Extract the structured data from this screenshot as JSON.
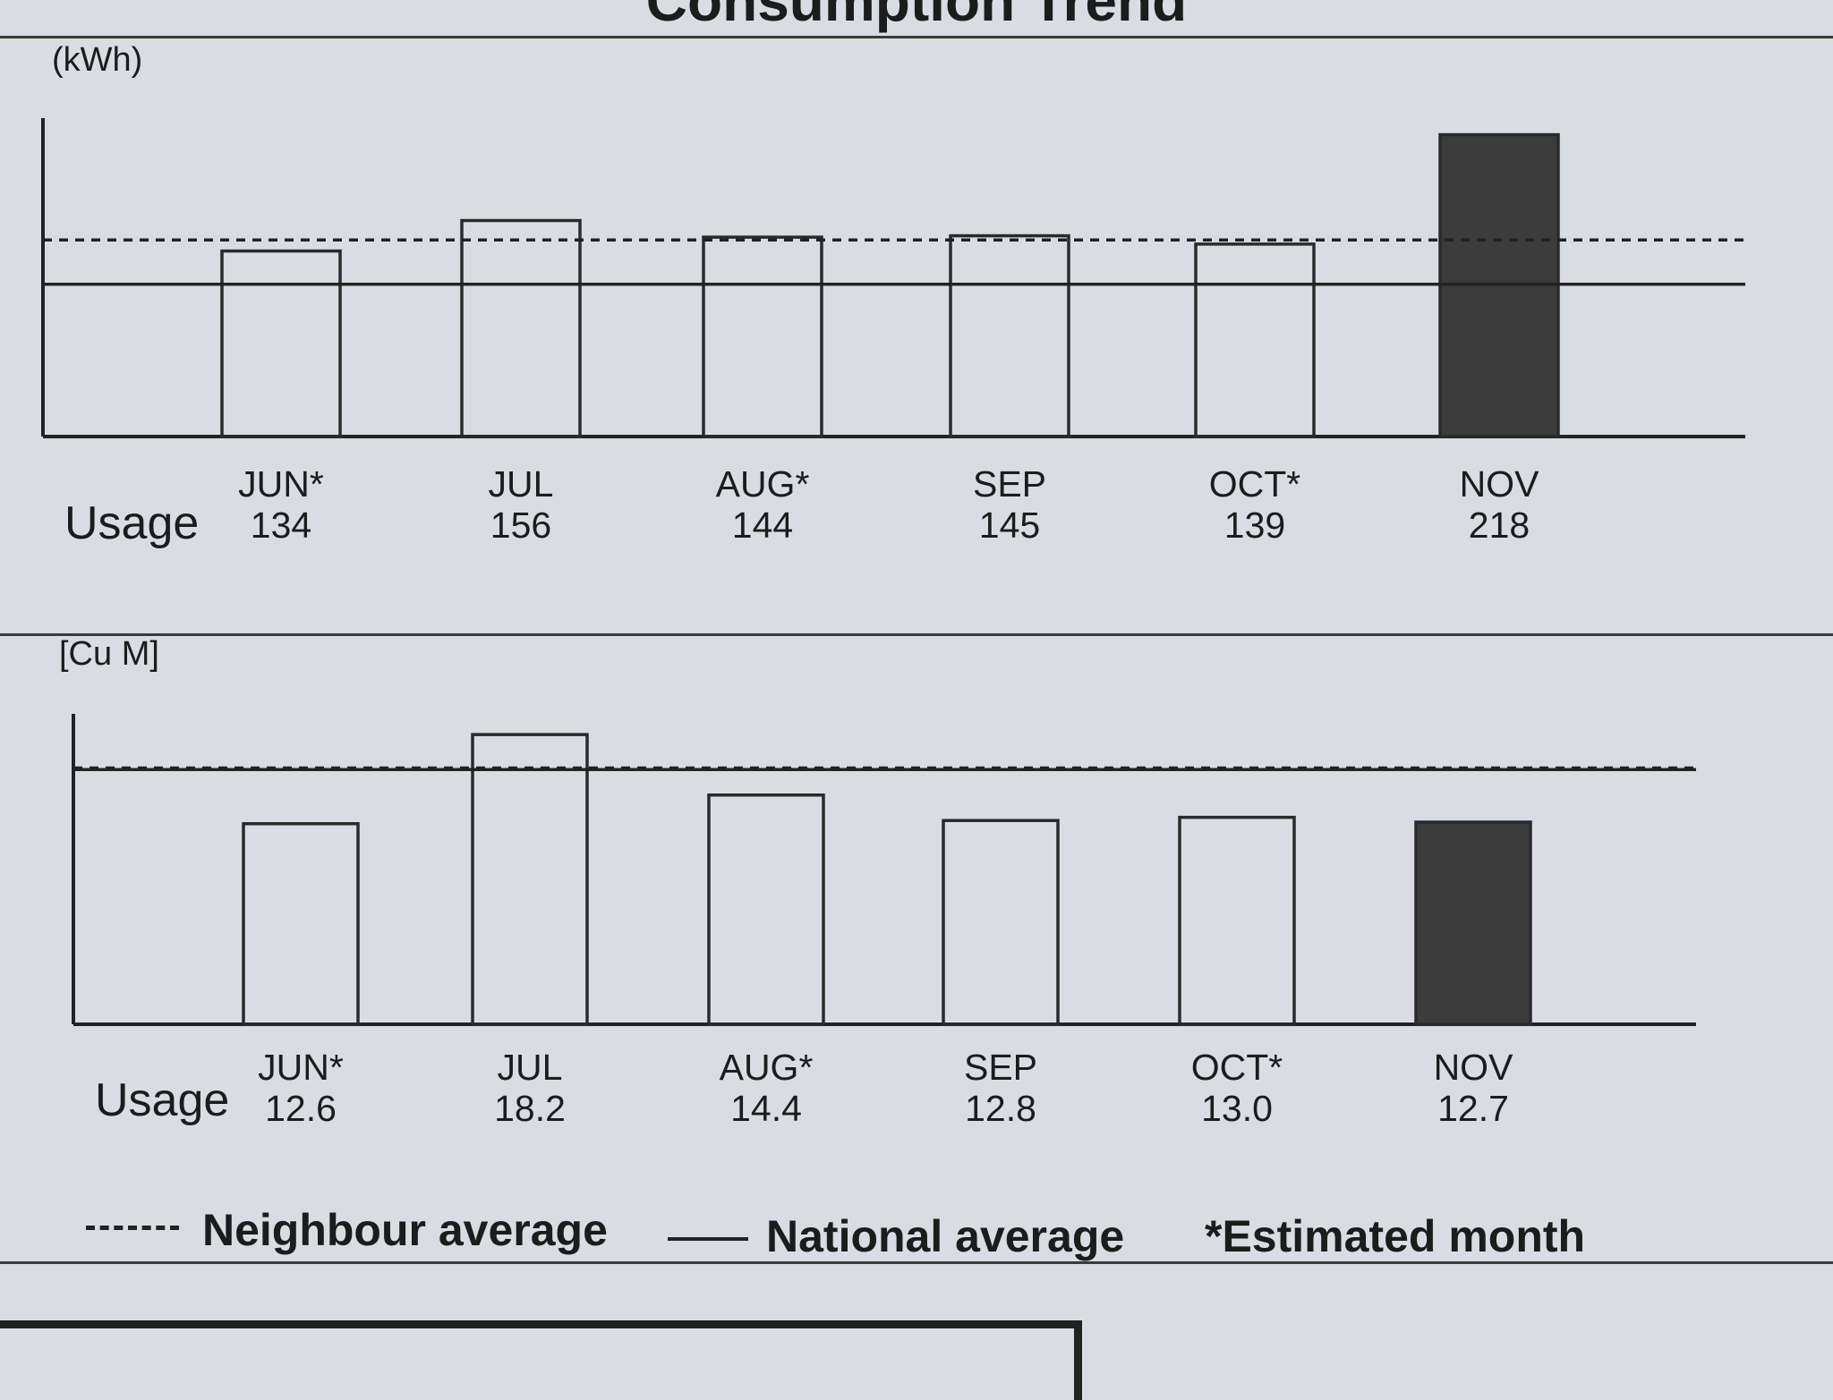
{
  "title": "Consumption Trend",
  "usage_label": "Usage",
  "charts_colors": {
    "bar_outline": "#2a2a2a",
    "highlight_fill": "#3b3b3b",
    "paper": "#d9dde3"
  },
  "legend": {
    "neighbour": "Neighbour average",
    "national": "National average",
    "estimated": "*Estimated month"
  },
  "chart_data": [
    {
      "type": "bar",
      "unit_label": "(kWh)",
      "categories": [
        "JUN*",
        "JUL",
        "AUG*",
        "SEP",
        "OCT*",
        "NOV"
      ],
      "values": [
        134,
        156,
        144,
        145,
        139,
        218
      ],
      "value_labels": [
        "134",
        "156",
        "144",
        "145",
        "139",
        "218"
      ],
      "highlight_index": 5,
      "neighbour_average": 142,
      "national_average": 110,
      "ylim": [
        0,
        230
      ],
      "grid": false
    },
    {
      "type": "bar",
      "unit_label": "[Cu M]",
      "categories": [
        "JUN*",
        "JUL",
        "AUG*",
        "SEP",
        "OCT*",
        "NOV"
      ],
      "values": [
        12.6,
        18.2,
        14.4,
        12.8,
        13.0,
        12.7
      ],
      "value_labels": [
        "12.6",
        "18.2",
        "14.4",
        "12.8",
        "13.0",
        "12.7"
      ],
      "highlight_index": 5,
      "neighbour_average": 16.1,
      "national_average": 16.0,
      "ylim": [
        0,
        19.5
      ],
      "grid": false
    }
  ]
}
